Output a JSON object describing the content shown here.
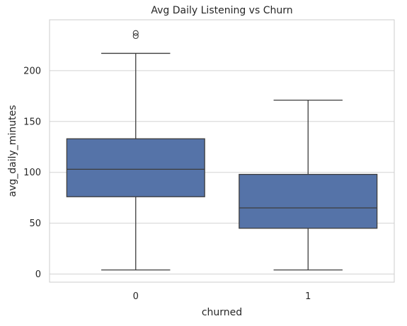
{
  "chart_data": {
    "type": "box",
    "title": "Avg Daily Listening vs Churn",
    "xlabel": "churned",
    "ylabel": "avg_daily_minutes",
    "categories": [
      "0",
      "1"
    ],
    "yticks": [
      0,
      50,
      100,
      150,
      200
    ],
    "ylim": [
      -8,
      250
    ],
    "grid": "horizontal",
    "colors": {
      "box_fill": "#5573a8",
      "line": "#3d3d3d",
      "grid": "#d3d3d3",
      "frame": "#cccccc"
    },
    "series": [
      {
        "category": "0",
        "min": 4,
        "q1": 76,
        "median": 103,
        "q3": 133,
        "max": 217,
        "outliers": [
          234,
          237
        ]
      },
      {
        "category": "1",
        "min": 4,
        "q1": 45,
        "median": 65,
        "q3": 98,
        "max": 171,
        "outliers": []
      }
    ]
  }
}
